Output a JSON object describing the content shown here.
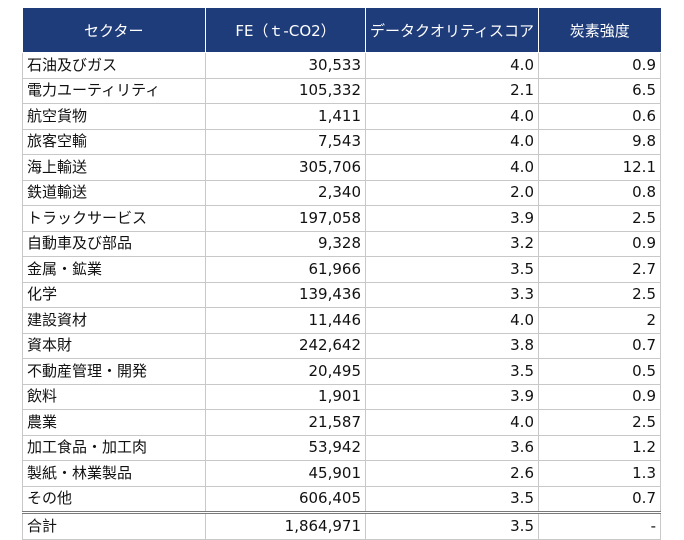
{
  "headers": [
    "セクター",
    "FE（ｔ-CO2）",
    "データクオリティスコア",
    "炭素強度"
  ],
  "rows": [
    {
      "sector": "石油及びガス",
      "fe": "30,533",
      "score": "4.0",
      "intensity": "0.9"
    },
    {
      "sector": "電力ユーティリティ",
      "fe": "105,332",
      "score": "2.1",
      "intensity": "6.5"
    },
    {
      "sector": "航空貨物",
      "fe": "1,411",
      "score": "4.0",
      "intensity": "0.6"
    },
    {
      "sector": "旅客空輸",
      "fe": "7,543",
      "score": "4.0",
      "intensity": "9.8"
    },
    {
      "sector": "海上輸送",
      "fe": "305,706",
      "score": "4.0",
      "intensity": "12.1"
    },
    {
      "sector": "鉄道輸送",
      "fe": "2,340",
      "score": "2.0",
      "intensity": "0.8"
    },
    {
      "sector": "トラックサービス",
      "fe": "197,058",
      "score": "3.9",
      "intensity": "2.5"
    },
    {
      "sector": "自動車及び部品",
      "fe": "9,328",
      "score": "3.2",
      "intensity": "0.9"
    },
    {
      "sector": "金属・鉱業",
      "fe": "61,966",
      "score": "3.5",
      "intensity": "2.7"
    },
    {
      "sector": "化学",
      "fe": "139,436",
      "score": "3.3",
      "intensity": "2.5"
    },
    {
      "sector": "建設資材",
      "fe": "11,446",
      "score": "4.0",
      "intensity": "2"
    },
    {
      "sector": "資本財",
      "fe": "242,642",
      "score": "3.8",
      "intensity": "0.7"
    },
    {
      "sector": "不動産管理・開発",
      "fe": "20,495",
      "score": "3.5",
      "intensity": "0.5"
    },
    {
      "sector": "飲料",
      "fe": "1,901",
      "score": "3.9",
      "intensity": "0.9"
    },
    {
      "sector": "農業",
      "fe": "21,587",
      "score": "4.0",
      "intensity": "2.5"
    },
    {
      "sector": "加工食品・加工肉",
      "fe": "53,942",
      "score": "3.6",
      "intensity": "1.2"
    },
    {
      "sector": "製紙・林業製品",
      "fe": "45,901",
      "score": "2.6",
      "intensity": "1.3"
    },
    {
      "sector": "その他",
      "fe": "606,405",
      "score": "3.5",
      "intensity": "0.7"
    }
  ],
  "total": {
    "sector": "合計",
    "fe": "1,864,971",
    "score": "3.5",
    "intensity": "-"
  }
}
